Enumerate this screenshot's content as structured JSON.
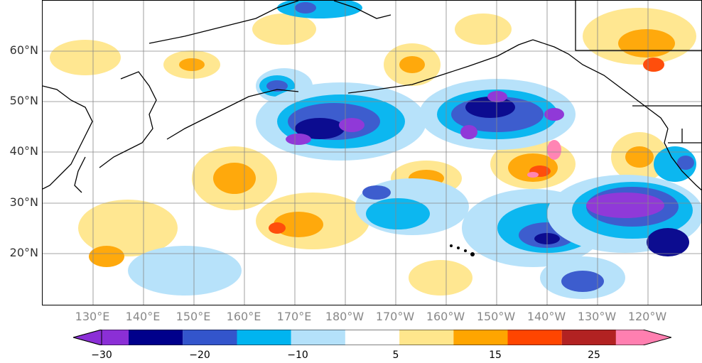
{
  "map": {
    "lat_labels": [
      "60°N",
      "50°N",
      "40°N",
      "30°N",
      "20°N"
    ],
    "lon_labels": [
      "130°E",
      "140°E",
      "150°E",
      "160°E",
      "170°E",
      "180°W",
      "170°W",
      "160°W",
      "150°W",
      "140°W",
      "130°W",
      "120°W"
    ]
  },
  "colorbar": {
    "colors": [
      "#8b2fd6",
      "#00008b",
      "#3355cc",
      "#00b4f0",
      "#b4e1fa",
      "#ffffff",
      "#ffe68c",
      "#ffa500",
      "#ff4500",
      "#b22222",
      "#ff7fb0"
    ],
    "tick_labels": [
      "−30",
      "−20",
      "−10",
      "5",
      "15",
      "25"
    ]
  }
}
